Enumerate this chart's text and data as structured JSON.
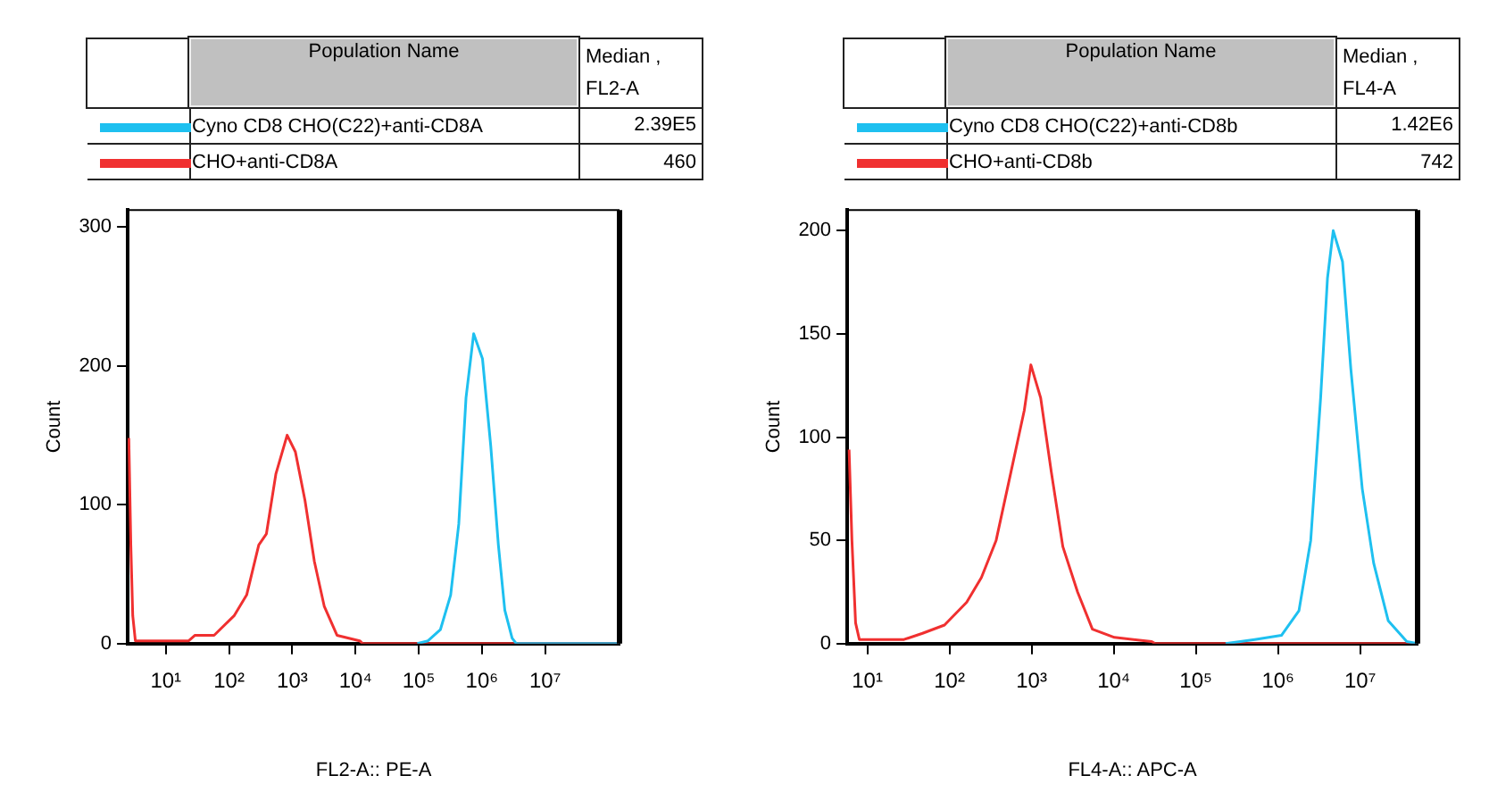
{
  "chart_data": [
    {
      "type": "line",
      "xlabel": "FL2-A:: PE-A",
      "ylabel": "Count",
      "log": "x",
      "legend": "top",
      "legend_title": "Population Name",
      "grid": false,
      "marker": "none",
      "line_style": "solid",
      "annotations": [
        "Median , FL2-A",
        "2.39E5",
        "460"
      ],
      "xlim": [
        2.5,
        150000000
      ],
      "ylim": [
        0,
        312
      ],
      "xticks": [
        {
          "value": 10,
          "label": "10¹"
        },
        {
          "value": 100,
          "label": "10²"
        },
        {
          "value": 1000,
          "label": "10³"
        },
        {
          "value": 10000,
          "label": "10⁴"
        },
        {
          "value": 100000,
          "label": "10⁵"
        },
        {
          "value": 1000000,
          "label": "10⁶"
        },
        {
          "value": 10000000,
          "label": "10⁷"
        }
      ],
      "yticks": [
        0,
        100,
        200,
        300
      ],
      "series": [
        {
          "name": "Cyno CD8 CHO(C22)+anti-CD8A",
          "color": "#1ec0f0",
          "x": [
            95000,
            140000,
            220000,
            320000,
            430000,
            560000,
            740000,
            1020000,
            1380000,
            1820000,
            2300000,
            3000000,
            3500000,
            150000000
          ],
          "values": [
            0,
            2,
            10,
            35,
            86,
            177,
            223,
            205,
            142,
            71,
            24,
            4,
            0,
            0
          ]
        },
        {
          "name": "CHO+anti-CD8A",
          "color": "#f03030",
          "x": [
            2.6,
            2.8,
            3.0,
            3.3,
            4,
            23,
            29,
            58,
            120,
            190,
            295,
            390,
            550,
            830,
            1120,
            1590,
            2240,
            3200,
            5100,
            11700,
            13000,
            150000000
          ],
          "values": [
            148,
            70,
            20,
            2,
            2,
            2,
            6,
            6,
            20,
            35,
            71,
            79,
            122,
            150,
            138,
            103,
            59,
            27,
            6,
            2,
            0,
            0
          ]
        }
      ]
    },
    {
      "type": "line",
      "xlabel": "FL4-A:: APC-A",
      "ylabel": "Count",
      "log": "x",
      "legend": "top",
      "legend_title": "Population Name",
      "grid": false,
      "marker": "none",
      "line_style": "solid",
      "annotations": [
        "Median , FL4-A",
        "1.42E6",
        "742"
      ],
      "xlim": [
        5.7,
        50000000
      ],
      "ylim": [
        0,
        210
      ],
      "xticks": [
        {
          "value": 10,
          "label": "10¹"
        },
        {
          "value": 100,
          "label": "10²"
        },
        {
          "value": 1000,
          "label": "10³"
        },
        {
          "value": 10000,
          "label": "10⁴"
        },
        {
          "value": 100000,
          "label": "10⁵"
        },
        {
          "value": 1000000,
          "label": "10⁶"
        },
        {
          "value": 10000000,
          "label": "10⁷"
        }
      ],
      "yticks": [
        0,
        50,
        100,
        150,
        200
      ],
      "series": [
        {
          "name": "Cyno CD8 CHO(C22)+anti-CD8b",
          "color": "#1ec0f0",
          "x": [
            230000,
            520000,
            1100000,
            1800000,
            2500000,
            3300000,
            4000000,
            4700000,
            6100000,
            7700000,
            10600000,
            14600000,
            22000000,
            37000000,
            50000000
          ],
          "values": [
            0,
            2,
            4,
            16,
            50,
            119,
            177,
            200,
            185,
            133,
            75,
            39,
            11,
            1,
            0
          ]
        },
        {
          "name": "CHO+anti-CD8b",
          "color": "#f03030",
          "x": [
            6,
            6.5,
            7.2,
            8,
            28,
            47,
            87,
            162,
            245,
            370,
            560,
            815,
            980,
            1290,
            1740,
            2400,
            3630,
            5500,
            10200,
            29000,
            32000,
            50000000
          ],
          "values": [
            94,
            50,
            10,
            2,
            2,
            5,
            9,
            20,
            32,
            50,
            83,
            113,
            135,
            119,
            83,
            47,
            25,
            7,
            3,
            1,
            0,
            0
          ]
        }
      ]
    }
  ]
}
